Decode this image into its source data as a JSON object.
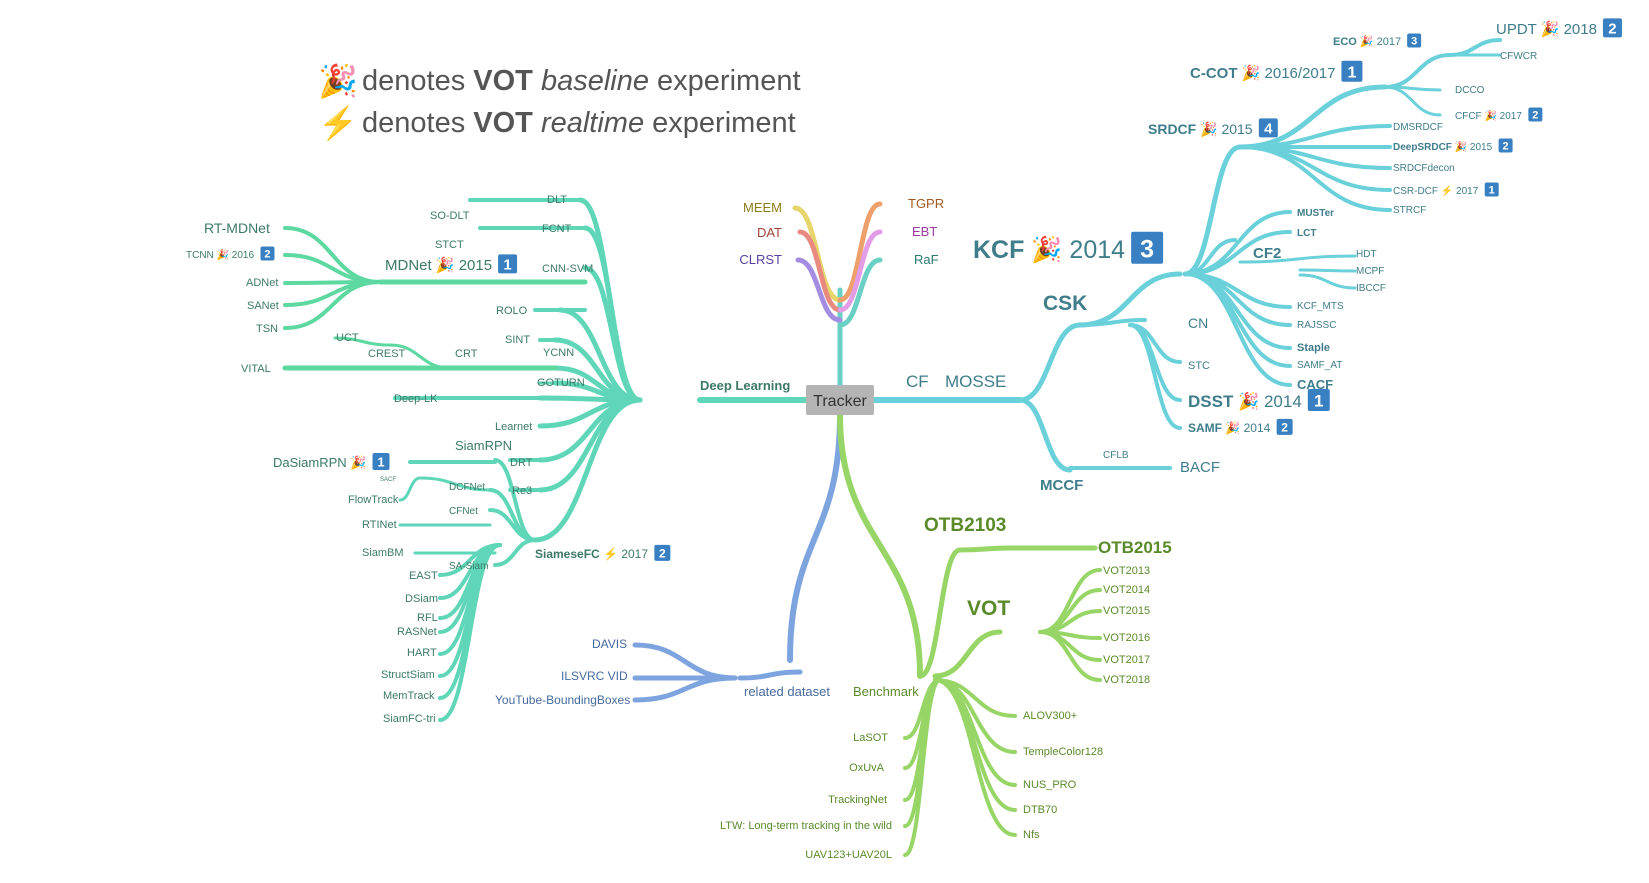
{
  "legend": {
    "baseline": {
      "icon": "🎉",
      "prefix": "denotes",
      "vot": "VOT",
      "kind": "baseline",
      "suffix": "experiment"
    },
    "realtime": {
      "icon": "⚡",
      "prefix": "denotes",
      "vot": "VOT",
      "kind": "realtime",
      "suffix": "experiment"
    }
  },
  "center": "Tracker",
  "colors": {
    "deep": "#5fd6b8",
    "deep_dark": "#5dd8a0",
    "cf": "#6ad0da",
    "bench": "#97d566",
    "related": "#7ea4e0",
    "hub": "#b4b4b4",
    "meem": "#e6d56a",
    "dat": "#e98a80",
    "clrst": "#a28de2",
    "tgpr": "#eea06a",
    "ebt": "#e39ce6",
    "raf": "#6ad0c4",
    "badge": "#3880c2",
    "text_deep": "#3c7a68",
    "text_cf": "#3f7d8a",
    "text_bench": "#5a8a2a",
    "text_related": "#456a9e"
  },
  "labels": {
    "deep_learning": "Deep Learning",
    "cf": "CF",
    "mosse": "MOSSE",
    "benchmark": "Benchmark",
    "related": "related dataset",
    "meem": "MEEM",
    "dat": "DAT",
    "clrst": "CLRST",
    "tgpr": "TGPR",
    "ebt": "EBT",
    "raf": "RaF",
    "dlt": "DLT",
    "so_dlt": "SO-DLT",
    "fcnt": "FCNT",
    "stct": "STCT",
    "cnn_svm": "CNN-SVM",
    "rolo": "ROLO",
    "sint": "SINT",
    "ycnn": "YCNN",
    "goturn": "GOTURN",
    "deep_lk": "Deep-LK",
    "learnet": "Learnet",
    "drt": "DRT",
    "re3": "Re3",
    "mdnet": "MDNet",
    "mdnet_year": "2015",
    "mdnet_badge": "1",
    "rt_mdnet": "RT-MDNet",
    "tcnn": "TCNN",
    "tcnn_year": "2016",
    "tcnn_badge": "2",
    "adnet": "ADNet",
    "sanet": "SANet",
    "tsn": "TSN",
    "crt": "CRT",
    "crest": "CREST",
    "uct": "UCT",
    "vital": "VITAL",
    "siamesefc": "SiameseFC",
    "siamesefc_year": "2017",
    "siamesefc_badge": "2",
    "siamrpn": "SiamRPN",
    "dasiamrpn": "DaSiamRPN",
    "dasiamrpn_badge": "1",
    "sacf": "SACF",
    "dcfnet": "DCFNet",
    "flowtrack": "FlowTrack",
    "cfnet": "CFNet",
    "rtinet": "RTINet",
    "siambm": "SiamBM",
    "sa_siam": "SA-Siam",
    "east": "EAST",
    "dsiam": "DSiam",
    "rfl": "RFL",
    "rasnet": "RASNet",
    "hart": "HART",
    "structsiam": "StructSiam",
    "memtrack": "MemTrack",
    "siamfc_tri": "SiamFC-tri",
    "davis": "DAVIS",
    "ilsvrc": "ILSVRC VID",
    "ytbb": "YouTube-BoundingBoxes",
    "csk": "CSK",
    "kcf": "KCF",
    "kcf_year": "2014",
    "kcf_badge": "3",
    "cn": "CN",
    "stc": "STC",
    "dsst": "DSST",
    "dsst_year": "2014",
    "dsst_badge": "1",
    "samf": "SAMF",
    "samf_year": "2014",
    "samf_badge": "2",
    "mccf": "MCCF",
    "cflb": "CFLB",
    "bacf": "BACF",
    "srdcf": "SRDCF",
    "srdcf_year": "2015",
    "srdcf_badge": "4",
    "ccot": "C-COT",
    "ccot_year": "2016/2017",
    "ccot_badge": "1",
    "eco": "ECO",
    "eco_year": "2017",
    "eco_badge": "3",
    "updt": "UPDT",
    "updt_year": "2018",
    "updt_badge": "2",
    "cfwcr": "CFWCR",
    "dcco": "DCCO",
    "cfcf": "CFCF",
    "cfcf_year": "2017",
    "cfcf_badge": "2",
    "dmsrdcf": "DMSRDCF",
    "deepsrdcf": "DeepSRDCF",
    "deepsrdcf_year": "2015",
    "deepsrdcf_badge": "2",
    "srdcfdecon": "SRDCFdecon",
    "csr_dcf": "CSR-DCF",
    "csr_dcf_year": "2017",
    "csr_dcf_badge": "1",
    "strcf": "STRCF",
    "muster": "MUSTer",
    "lct": "LCT",
    "cf2": "CF2",
    "hdt": "HDT",
    "mcpf": "MCPF",
    "ibccf": "IBCCF",
    "kcf_mts": "KCF_MTS",
    "rajssc": "RAJSSC",
    "staple": "Staple",
    "samf_at": "SAMF_AT",
    "cacf": "CACF",
    "otb2013": "OTB2103",
    "otb2015": "OTB2015",
    "vot": "VOT",
    "vot2013": "VOT2013",
    "vot2014": "VOT2014",
    "vot2015": "VOT2015",
    "vot2016": "VOT2016",
    "vot2017": "VOT2017",
    "vot2018": "VOT2018",
    "alov": "ALOV300+",
    "tc128": "TempleColor128",
    "nuspro": "NUS_PRO",
    "dtb70": "DTB70",
    "nfs": "Nfs",
    "lasot": "LaSOT",
    "oxuva": "OxUvA",
    "trackingnet": "TrackingNet",
    "ltw": "LTW: Long-term tracking in the wild",
    "uav": "UAV123+UAV20L"
  },
  "icons": {
    "baseline": "🎉",
    "realtime": "⚡",
    "baseline_icon_name": "party-popper-icon",
    "realtime_icon_name": "lightning-icon"
  }
}
